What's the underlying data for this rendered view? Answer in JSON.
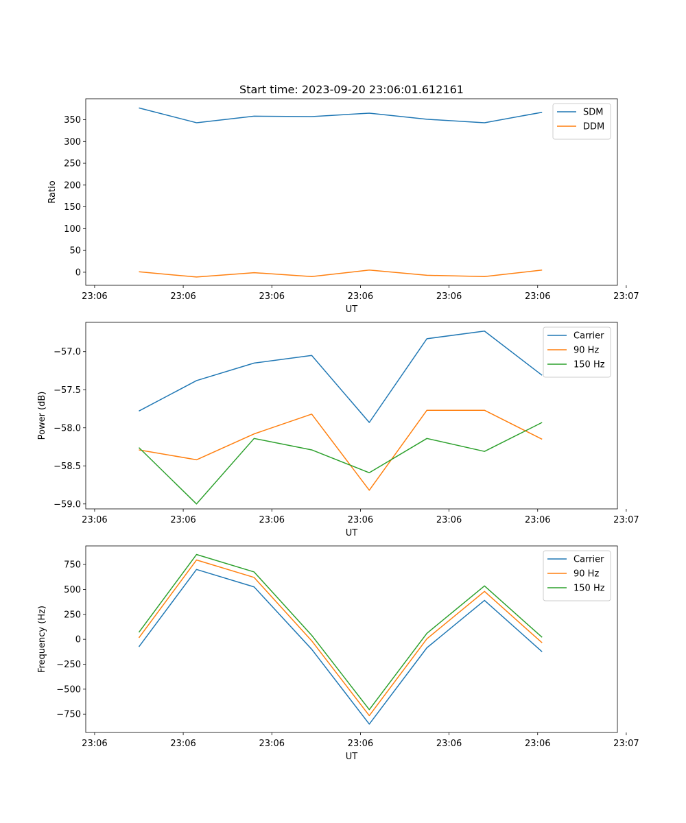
{
  "figure": {
    "title": "Start time: 2023-09-20 23:06:01.612161"
  },
  "colors": {
    "blue": "#1f77b4",
    "orange": "#ff7f0e",
    "green": "#2ca02c"
  },
  "chart_data": [
    {
      "type": "line",
      "name": "ratio",
      "xlabel": "UT",
      "ylabel": "Ratio",
      "x": [
        0.5,
        1.15,
        1.8,
        2.45,
        3.1,
        3.75,
        4.4,
        5.05
      ],
      "xlim": [
        -0.1,
        5.9
      ],
      "xticks": [
        0,
        1,
        2,
        3,
        4,
        5,
        6
      ],
      "xtick_labels": [
        "23:06",
        "23:06",
        "23:06",
        "23:06",
        "23:06",
        "23:06",
        "23:07"
      ],
      "ylim": [
        -30,
        398
      ],
      "yticks": [
        0,
        50,
        100,
        150,
        200,
        250,
        300,
        350
      ],
      "ytick_labels": [
        "0",
        "50",
        "100",
        "150",
        "200",
        "250",
        "300",
        "350"
      ],
      "legend": "upper right",
      "series": [
        {
          "name": "SDM",
          "color": "#1f77b4",
          "values": [
            377,
            343,
            358,
            357,
            365,
            351,
            343,
            367
          ]
        },
        {
          "name": "DDM",
          "color": "#ff7f0e",
          "values": [
            1,
            -11,
            -1,
            -10,
            5,
            -7,
            -10,
            5
          ]
        }
      ]
    },
    {
      "type": "line",
      "name": "power",
      "xlabel": "UT",
      "ylabel": "Power (dB)",
      "x": [
        0.5,
        1.15,
        1.8,
        2.45,
        3.1,
        3.75,
        4.4,
        5.05
      ],
      "xlim": [
        -0.1,
        5.9
      ],
      "xticks": [
        0,
        1,
        2,
        3,
        4,
        5,
        6
      ],
      "xtick_labels": [
        "23:06",
        "23:06",
        "23:06",
        "23:06",
        "23:06",
        "23:06",
        "23:07"
      ],
      "ylim": [
        -59.065,
        -56.615
      ],
      "yticks": [
        -59.0,
        -58.5,
        -58.0,
        -57.5,
        -57.0
      ],
      "ytick_labels": [
        "−59.0",
        "−58.5",
        "−58.0",
        "−57.5",
        "−57.0"
      ],
      "legend": "upper right",
      "series": [
        {
          "name": "Carrier",
          "color": "#1f77b4",
          "values": [
            -57.78,
            -57.38,
            -57.15,
            -57.05,
            -57.93,
            -56.83,
            -56.73,
            -57.31
          ]
        },
        {
          "name": "90 Hz",
          "color": "#ff7f0e",
          "values": [
            -58.29,
            -58.42,
            -58.08,
            -57.82,
            -58.82,
            -57.77,
            -57.77,
            -58.15
          ]
        },
        {
          "name": "150 Hz",
          "color": "#2ca02c",
          "values": [
            -58.26,
            -59.0,
            -58.14,
            -58.29,
            -58.59,
            -58.14,
            -58.31,
            -57.93
          ]
        }
      ]
    },
    {
      "type": "line",
      "name": "frequency",
      "xlabel": "UT",
      "ylabel": "Frequency (Hz)",
      "x": [
        0.5,
        1.15,
        1.8,
        2.45,
        3.1,
        3.75,
        4.4,
        5.05
      ],
      "xlim": [
        -0.1,
        5.9
      ],
      "xticks": [
        0,
        1,
        2,
        3,
        4,
        5,
        6
      ],
      "xtick_labels": [
        "23:06",
        "23:06",
        "23:06",
        "23:06",
        "23:06",
        "23:06",
        "23:07"
      ],
      "ylim": [
        -934,
        936
      ],
      "yticks": [
        -750,
        -500,
        -250,
        0,
        250,
        500,
        750
      ],
      "ytick_labels": [
        "−750",
        "−500",
        "−250",
        "0",
        "250",
        "500",
        "750"
      ],
      "legend": "upper right",
      "series": [
        {
          "name": "Carrier",
          "color": "#1f77b4",
          "values": [
            -75,
            700,
            525,
            -100,
            -850,
            -85,
            390,
            -125
          ]
        },
        {
          "name": "90 Hz",
          "color": "#ff7f0e",
          "values": [
            15,
            795,
            620,
            -15,
            -765,
            5,
            480,
            -35
          ]
        },
        {
          "name": "150 Hz",
          "color": "#2ca02c",
          "values": [
            70,
            850,
            675,
            40,
            -705,
            60,
            535,
            20
          ]
        }
      ]
    }
  ]
}
